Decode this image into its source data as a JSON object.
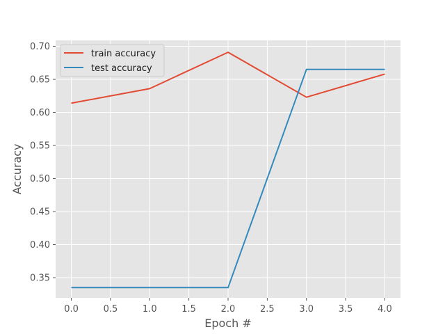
{
  "chart_data": {
    "type": "line",
    "title": "",
    "xlabel": "Epoch #",
    "ylabel": "Accuracy",
    "x": [
      0,
      1,
      2,
      3,
      4
    ],
    "xlim": [
      -0.2,
      4.2
    ],
    "ylim": [
      0.3195,
      0.709
    ],
    "xticks": [
      "0.0",
      "0.5",
      "1.0",
      "1.5",
      "2.0",
      "2.5",
      "3.0",
      "3.5",
      "4.0"
    ],
    "yticks": [
      "0.35",
      "0.40",
      "0.45",
      "0.50",
      "0.55",
      "0.60",
      "0.65",
      "0.70"
    ],
    "grid": true,
    "legend_position": "top-left",
    "background_color": "#e5e5e5",
    "grid_color": "#ffffff",
    "series": [
      {
        "name": "train accuracy",
        "color": "#e24a33",
        "values": [
          0.614,
          0.636,
          0.691,
          0.623,
          0.658
        ]
      },
      {
        "name": "test accuracy",
        "color": "#348abd",
        "values": [
          0.335,
          0.335,
          0.335,
          0.665,
          0.665
        ]
      }
    ]
  }
}
